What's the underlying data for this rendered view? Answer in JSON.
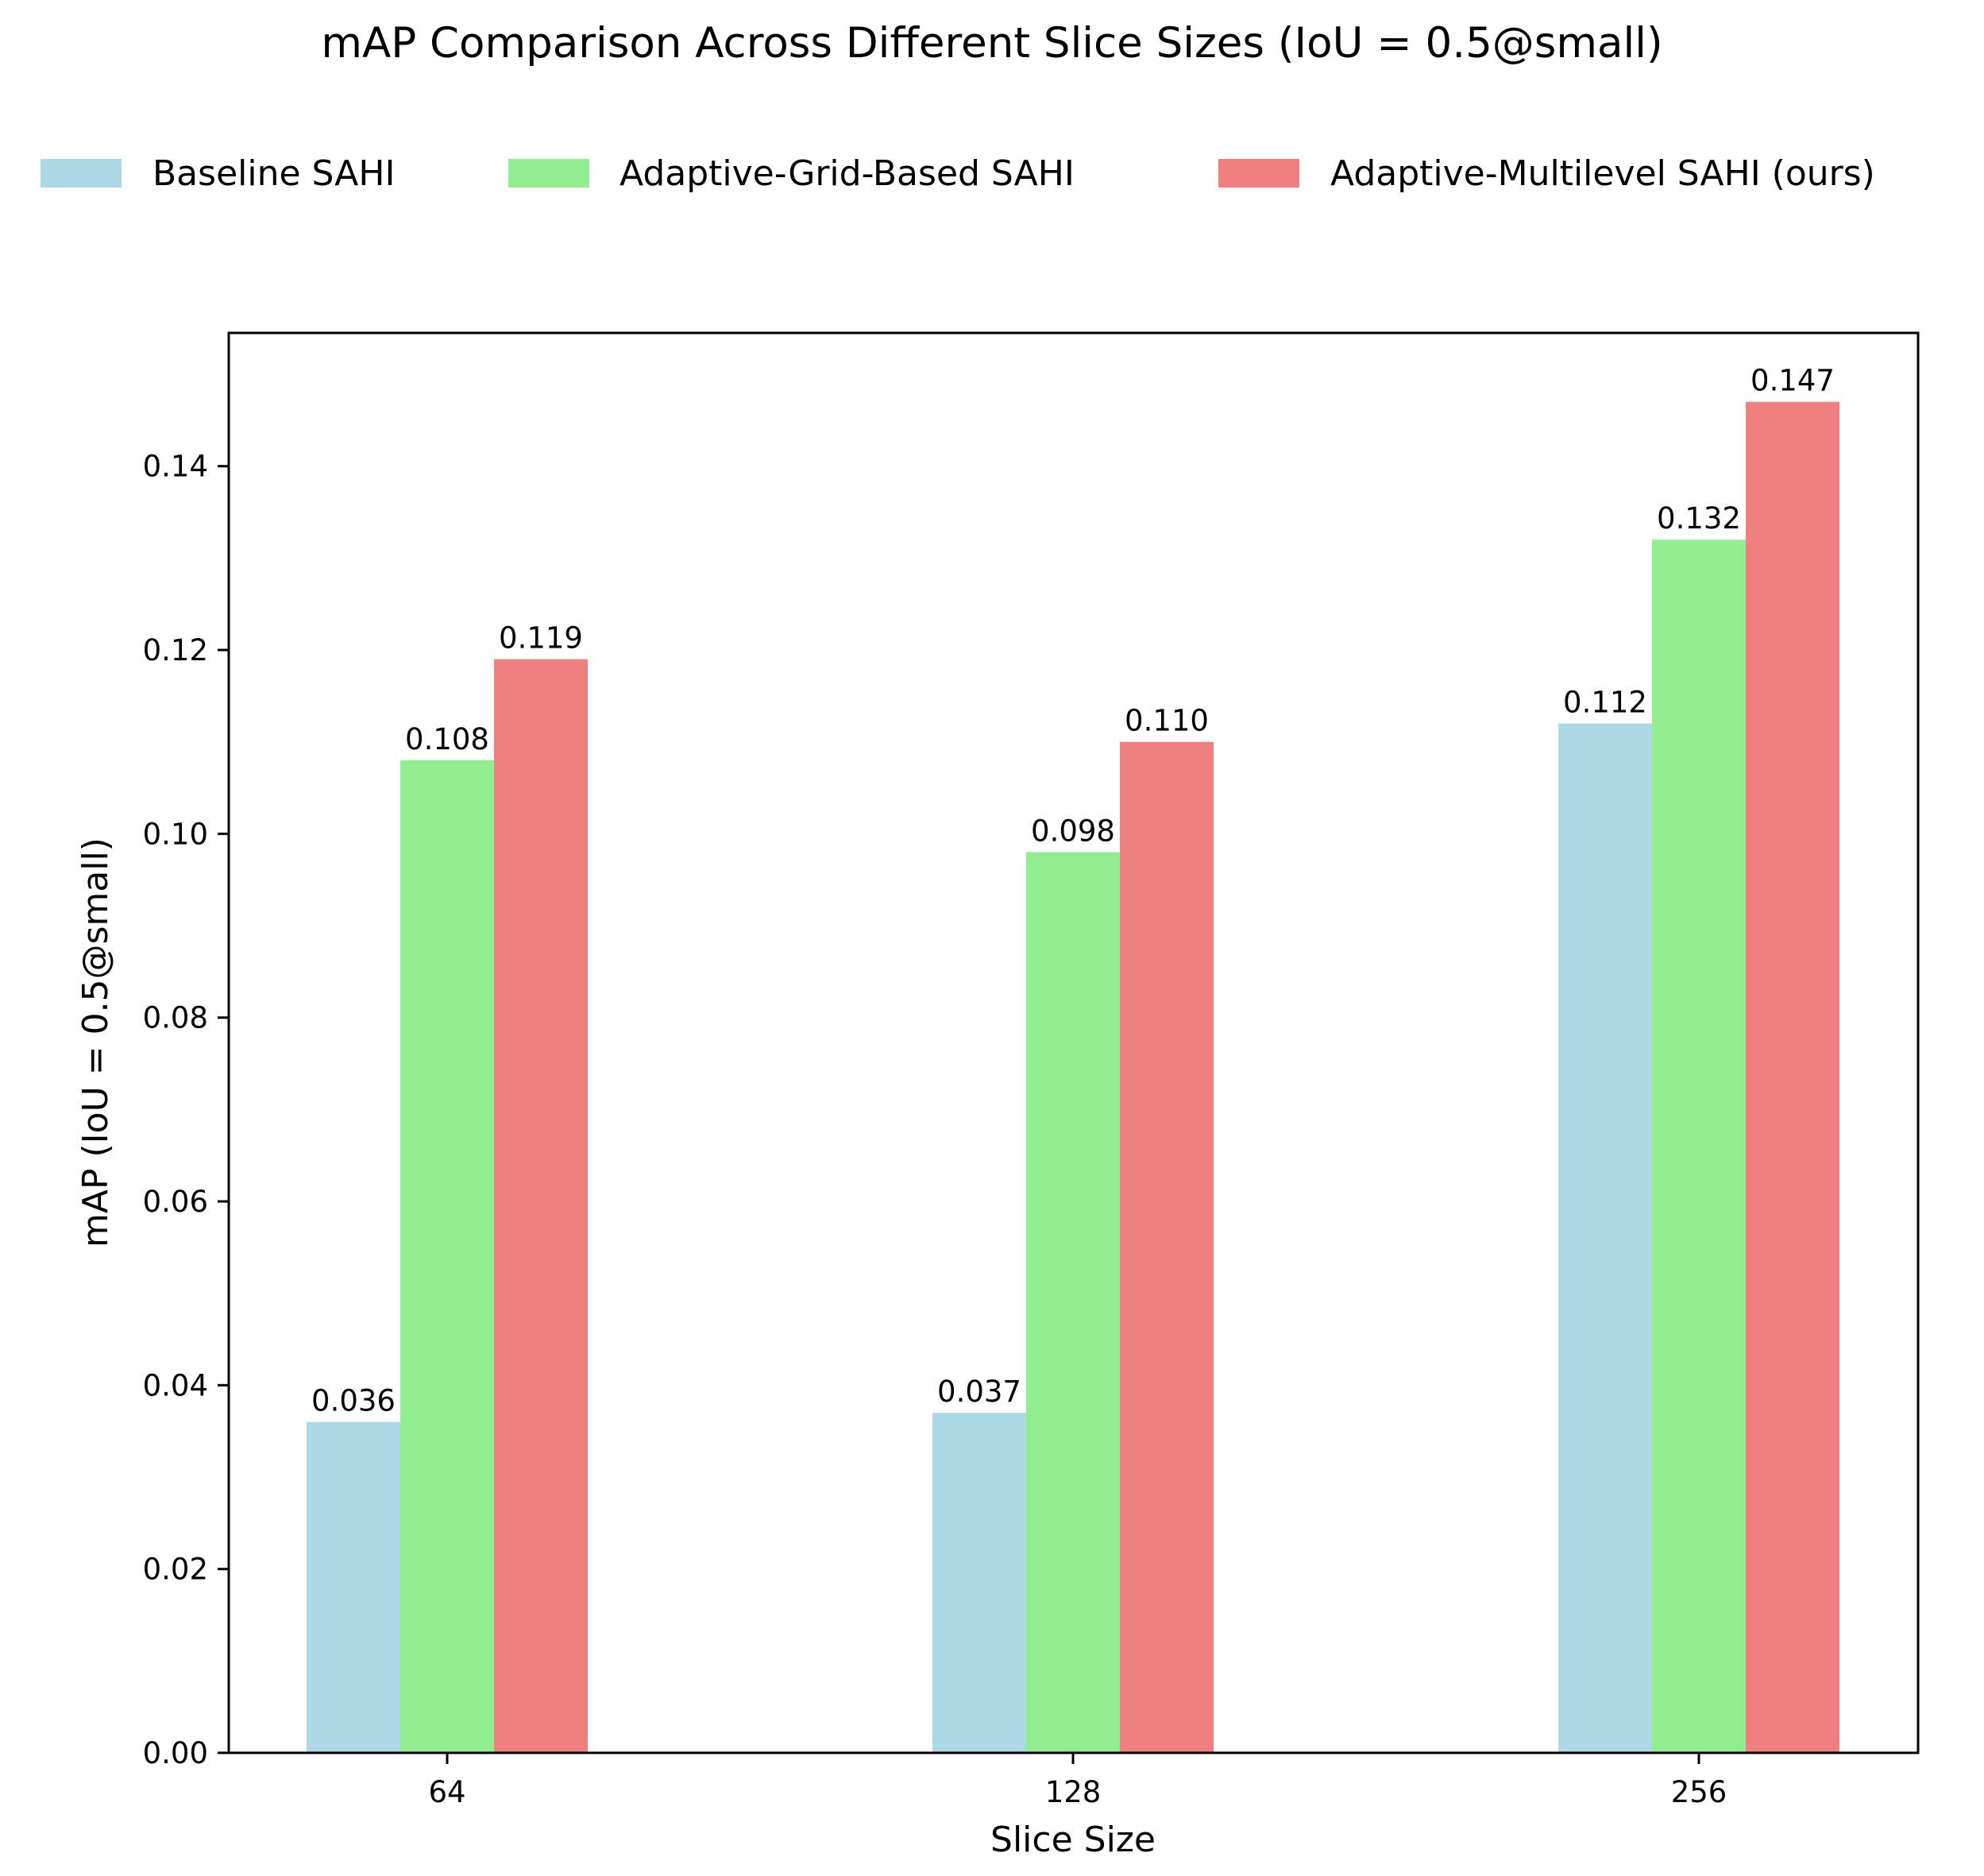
{
  "chart_data": {
    "type": "bar",
    "title": "mAP Comparison Across Different Slice Sizes (IoU = 0.5@small)",
    "xlabel": "Slice Size",
    "ylabel": "mAP (IoU = 0.5@small)",
    "categories": [
      "64",
      "128",
      "256"
    ],
    "series": [
      {
        "name": "Baseline SAHI",
        "color": "#add8e6",
        "values": [
          0.036,
          0.037,
          0.112
        ],
        "labels": [
          "0.036",
          "0.037",
          "0.112"
        ]
      },
      {
        "name": "Adaptive-Grid-Based SAHI",
        "color": "#90ee90",
        "values": [
          0.108,
          0.098,
          0.132
        ],
        "labels": [
          "0.108",
          "0.098",
          "0.132"
        ]
      },
      {
        "name": "Adaptive-Multilevel SAHI (ours)",
        "color": "#f08080",
        "values": [
          0.119,
          0.11,
          0.147
        ],
        "labels": [
          "0.119",
          "0.110",
          "0.147"
        ]
      }
    ],
    "yticks": [
      "0.00",
      "0.02",
      "0.04",
      "0.06",
      "0.08",
      "0.10",
      "0.12",
      "0.14"
    ],
    "ylim": [
      0,
      0.1545
    ],
    "grid": false,
    "legend_position": "top, above plot"
  }
}
